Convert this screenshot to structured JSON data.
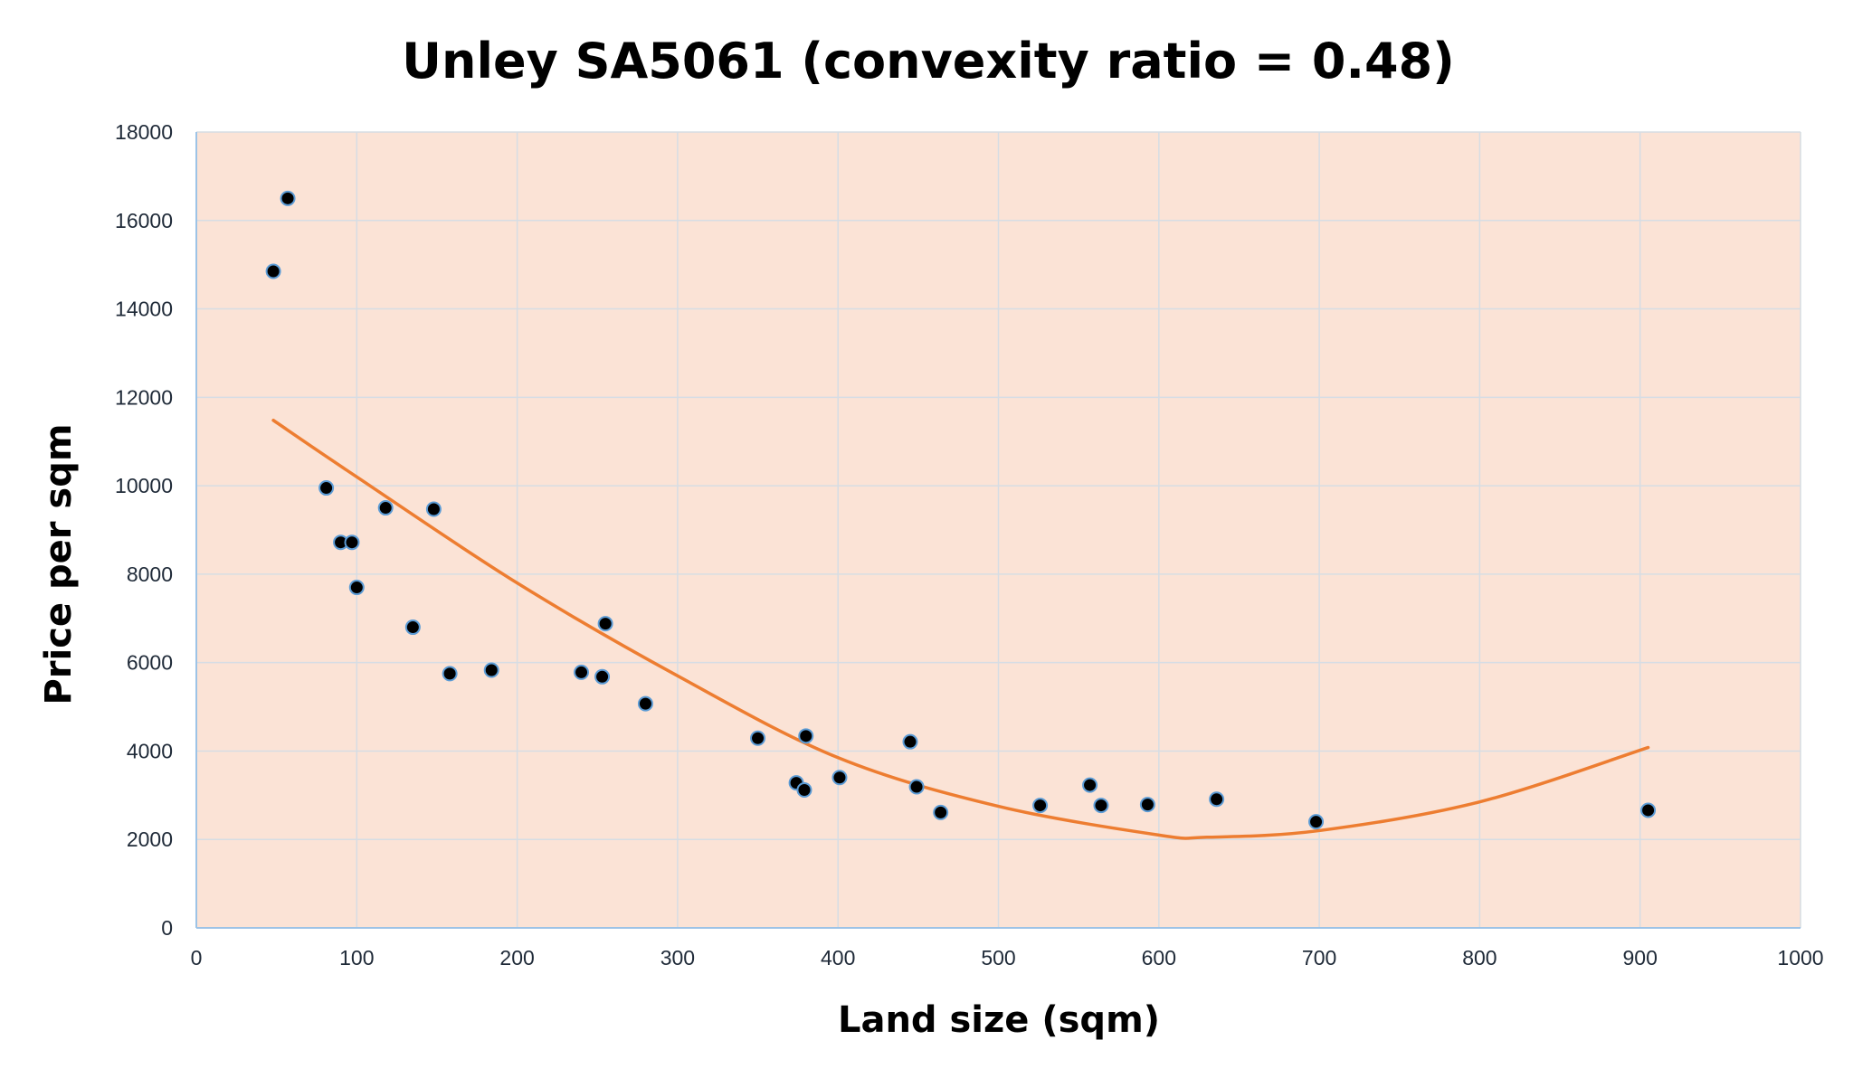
{
  "chart_data": {
    "type": "scatter",
    "title": "Unley SA5061 (convexity ratio = 0.48)",
    "xlabel": "Land size (sqm)",
    "ylabel": "Price per sqm",
    "xlim": [
      0,
      1000
    ],
    "ylim": [
      0,
      18000
    ],
    "x_ticks": [
      0,
      100,
      200,
      300,
      400,
      500,
      600,
      700,
      800,
      900,
      1000
    ],
    "y_ticks": [
      0,
      2000,
      4000,
      6000,
      8000,
      10000,
      12000,
      14000,
      16000,
      18000
    ],
    "grid": true,
    "legend": "none",
    "colors": {
      "plot_background": "#fbe3d6",
      "gridline": "#d6dde4",
      "axis_line": "#9dc3e6",
      "marker_fill": "#000000",
      "marker_edge": "#5b9bd5",
      "trendline": "#ed7d31"
    },
    "points": [
      {
        "x": 48,
        "y": 14850
      },
      {
        "x": 57,
        "y": 16500
      },
      {
        "x": 81,
        "y": 9950
      },
      {
        "x": 90,
        "y": 8720
      },
      {
        "x": 97,
        "y": 8720
      },
      {
        "x": 100,
        "y": 7700
      },
      {
        "x": 118,
        "y": 9500
      },
      {
        "x": 135,
        "y": 6800
      },
      {
        "x": 148,
        "y": 9470
      },
      {
        "x": 158,
        "y": 5750
      },
      {
        "x": 184,
        "y": 5830
      },
      {
        "x": 240,
        "y": 5780
      },
      {
        "x": 253,
        "y": 5680
      },
      {
        "x": 255,
        "y": 6880
      },
      {
        "x": 280,
        "y": 5070
      },
      {
        "x": 350,
        "y": 4290
      },
      {
        "x": 374,
        "y": 3280
      },
      {
        "x": 379,
        "y": 3120
      },
      {
        "x": 380,
        "y": 4340
      },
      {
        "x": 401,
        "y": 3400
      },
      {
        "x": 445,
        "y": 4210
      },
      {
        "x": 449,
        "y": 3190
      },
      {
        "x": 464,
        "y": 2610
      },
      {
        "x": 526,
        "y": 2770
      },
      {
        "x": 557,
        "y": 3230
      },
      {
        "x": 564,
        "y": 2770
      },
      {
        "x": 593,
        "y": 2790
      },
      {
        "x": 636,
        "y": 2910
      },
      {
        "x": 698,
        "y": 2400
      },
      {
        "x": 905,
        "y": 2660
      }
    ],
    "trendline": {
      "type": "polynomial-2",
      "x_range": [
        48,
        905
      ],
      "points": [
        {
          "x": 48,
          "y": 11480
        },
        {
          "x": 100,
          "y": 10200
        },
        {
          "x": 200,
          "y": 7800
        },
        {
          "x": 300,
          "y": 5700
        },
        {
          "x": 400,
          "y": 3850
        },
        {
          "x": 500,
          "y": 2750
        },
        {
          "x": 600,
          "y": 2100
        },
        {
          "x": 630,
          "y": 2050
        },
        {
          "x": 700,
          "y": 2200
        },
        {
          "x": 800,
          "y": 2850
        },
        {
          "x": 905,
          "y": 4080
        }
      ]
    }
  }
}
